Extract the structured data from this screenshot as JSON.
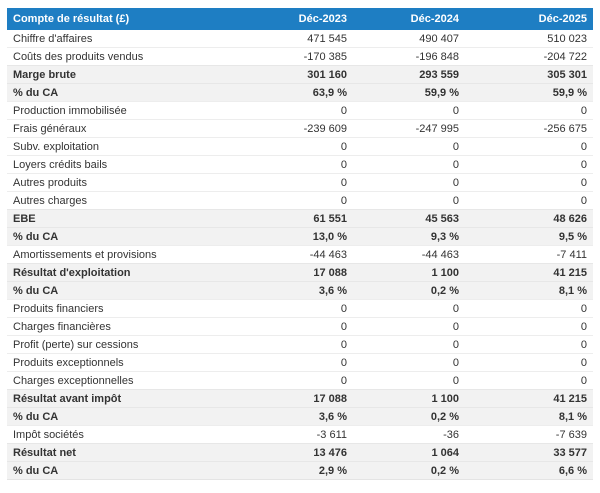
{
  "table": {
    "title_cell": "Compte de résultat (£)",
    "columns": [
      "Déc-2023",
      "Déc-2024",
      "Déc-2025"
    ],
    "rows": [
      {
        "label": "Chiffre d'affaires",
        "values": [
          "471 545",
          "490 407",
          "510 023"
        ],
        "style": "normal"
      },
      {
        "label": "Coûts des produits vendus",
        "values": [
          "-170 385",
          "-196 848",
          "-204 722"
        ],
        "style": "normal"
      },
      {
        "label": "Marge brute",
        "values": [
          "301 160",
          "293 559",
          "305 301"
        ],
        "style": "subtotal"
      },
      {
        "label": "% du CA",
        "values": [
          "63,9 %",
          "59,9 %",
          "59,9 %"
        ],
        "style": "subtotal"
      },
      {
        "label": "Production immobilisée",
        "values": [
          "0",
          "0",
          "0"
        ],
        "style": "normal"
      },
      {
        "label": "Frais généraux",
        "values": [
          "-239 609",
          "-247 995",
          "-256 675"
        ],
        "style": "normal"
      },
      {
        "label": "Subv. exploitation",
        "values": [
          "0",
          "0",
          "0"
        ],
        "style": "normal"
      },
      {
        "label": "Loyers crédits bails",
        "values": [
          "0",
          "0",
          "0"
        ],
        "style": "normal"
      },
      {
        "label": "Autres produits",
        "values": [
          "0",
          "0",
          "0"
        ],
        "style": "normal"
      },
      {
        "label": "Autres charges",
        "values": [
          "0",
          "0",
          "0"
        ],
        "style": "normal"
      },
      {
        "label": "EBE",
        "values": [
          "61 551",
          "45 563",
          "48 626"
        ],
        "style": "subtotal"
      },
      {
        "label": "% du CA",
        "values": [
          "13,0 %",
          "9,3 %",
          "9,5 %"
        ],
        "style": "subtotal"
      },
      {
        "label": "Amortissements et provisions",
        "values": [
          "-44 463",
          "-44 463",
          "-7 411"
        ],
        "style": "normal"
      },
      {
        "label": "Résultat d'exploitation",
        "values": [
          "17 088",
          "1 100",
          "41 215"
        ],
        "style": "subtotal"
      },
      {
        "label": "% du CA",
        "values": [
          "3,6 %",
          "0,2 %",
          "8,1 %"
        ],
        "style": "subtotal"
      },
      {
        "label": "Produits financiers",
        "values": [
          "0",
          "0",
          "0"
        ],
        "style": "normal"
      },
      {
        "label": "Charges financières",
        "values": [
          "0",
          "0",
          "0"
        ],
        "style": "normal"
      },
      {
        "label": "Profit (perte) sur cessions",
        "values": [
          "0",
          "0",
          "0"
        ],
        "style": "normal"
      },
      {
        "label": "Produits exceptionnels",
        "values": [
          "0",
          "0",
          "0"
        ],
        "style": "normal"
      },
      {
        "label": "Charges exceptionnelles",
        "values": [
          "0",
          "0",
          "0"
        ],
        "style": "normal"
      },
      {
        "label": "Résultat avant impôt",
        "values": [
          "17 088",
          "1 100",
          "41 215"
        ],
        "style": "subtotal"
      },
      {
        "label": "% du CA",
        "values": [
          "3,6 %",
          "0,2 %",
          "8,1 %"
        ],
        "style": "subtotal"
      },
      {
        "label": "Impôt sociétés",
        "values": [
          "-3 611",
          "-36",
          "-7 639"
        ],
        "style": "normal"
      },
      {
        "label": "Résultat net",
        "values": [
          "13 476",
          "1 064",
          "33 577"
        ],
        "style": "subtotal"
      },
      {
        "label": "% du CA",
        "values": [
          "2,9 %",
          "0,2 %",
          "6,6 %"
        ],
        "style": "subtotal"
      }
    ],
    "colors": {
      "header_bg": "#1e7ec3",
      "header_text": "#ffffff",
      "subtotal_row_bg": "#f2f2f2",
      "row_border": "#ededed",
      "body_text": "#333333"
    }
  }
}
